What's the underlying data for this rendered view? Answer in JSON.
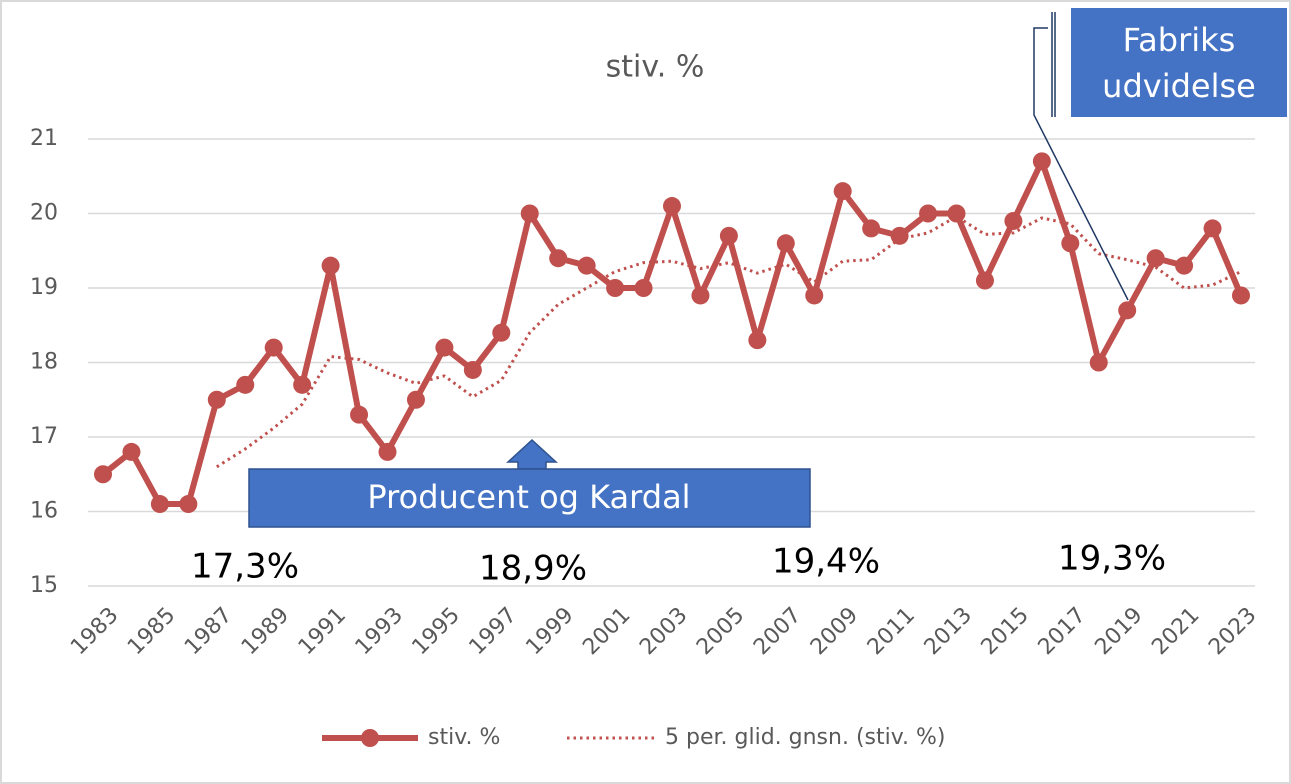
{
  "chart_data": {
    "type": "line",
    "title": "stiv. %",
    "x": [
      1983,
      1984,
      1985,
      1986,
      1987,
      1988,
      1989,
      1990,
      1991,
      1992,
      1993,
      1994,
      1995,
      1996,
      1997,
      1998,
      1999,
      2000,
      2001,
      2002,
      2003,
      2004,
      2005,
      2006,
      2007,
      2008,
      2009,
      2010,
      2011,
      2012,
      2013,
      2014,
      2015,
      2016,
      2017,
      2018,
      2019,
      2020,
      2021,
      2022,
      2023
    ],
    "series": [
      {
        "name": "stiv. %",
        "color": "#c0504d",
        "style": "solid-markers",
        "values": [
          16.5,
          16.8,
          16.1,
          16.1,
          17.5,
          17.7,
          18.2,
          17.7,
          19.3,
          17.3,
          16.8,
          17.5,
          18.2,
          17.9,
          18.4,
          20.0,
          19.4,
          19.3,
          19.0,
          19.0,
          20.1,
          18.9,
          19.7,
          18.3,
          19.6,
          18.9,
          20.3,
          19.8,
          19.7,
          20.0,
          20.0,
          19.1,
          19.9,
          20.7,
          19.6,
          18.0,
          18.7,
          19.4,
          19.3,
          19.8,
          18.9
        ]
      },
      {
        "name": "5 per. glid. gnsn. (stiv. %)",
        "color": "#c0504d",
        "style": "dotted",
        "values": [
          null,
          null,
          null,
          null,
          16.6,
          16.84,
          17.12,
          17.44,
          18.08,
          18.04,
          17.86,
          17.72,
          17.82,
          17.54,
          17.76,
          18.4,
          18.78,
          19.0,
          19.22,
          19.34,
          19.36,
          19.26,
          19.34,
          19.2,
          19.32,
          19.08,
          19.36,
          19.38,
          19.66,
          19.74,
          19.96,
          19.72,
          19.74,
          19.94,
          19.86,
          19.46,
          19.38,
          19.28,
          19.0,
          19.04,
          19.22
        ]
      }
    ],
    "xlim": [
      1983,
      2023
    ],
    "xticks": [
      1983,
      1985,
      1987,
      1989,
      1991,
      1993,
      1995,
      1997,
      1999,
      2001,
      2003,
      2005,
      2007,
      2009,
      2011,
      2013,
      2015,
      2017,
      2019,
      2021,
      2023
    ],
    "ylim": [
      15,
      21
    ],
    "yticks": [
      15,
      16,
      17,
      18,
      19,
      20,
      21
    ],
    "grid": true,
    "legend": "bottom",
    "annotations": [
      {
        "text": "Producent og Kardal"
      },
      {
        "lines": [
          "Fabriks",
          "udvidelse"
        ]
      }
    ],
    "period_labels": [
      "17,3%",
      "18,9%",
      "19,4%",
      "19,3%"
    ]
  }
}
